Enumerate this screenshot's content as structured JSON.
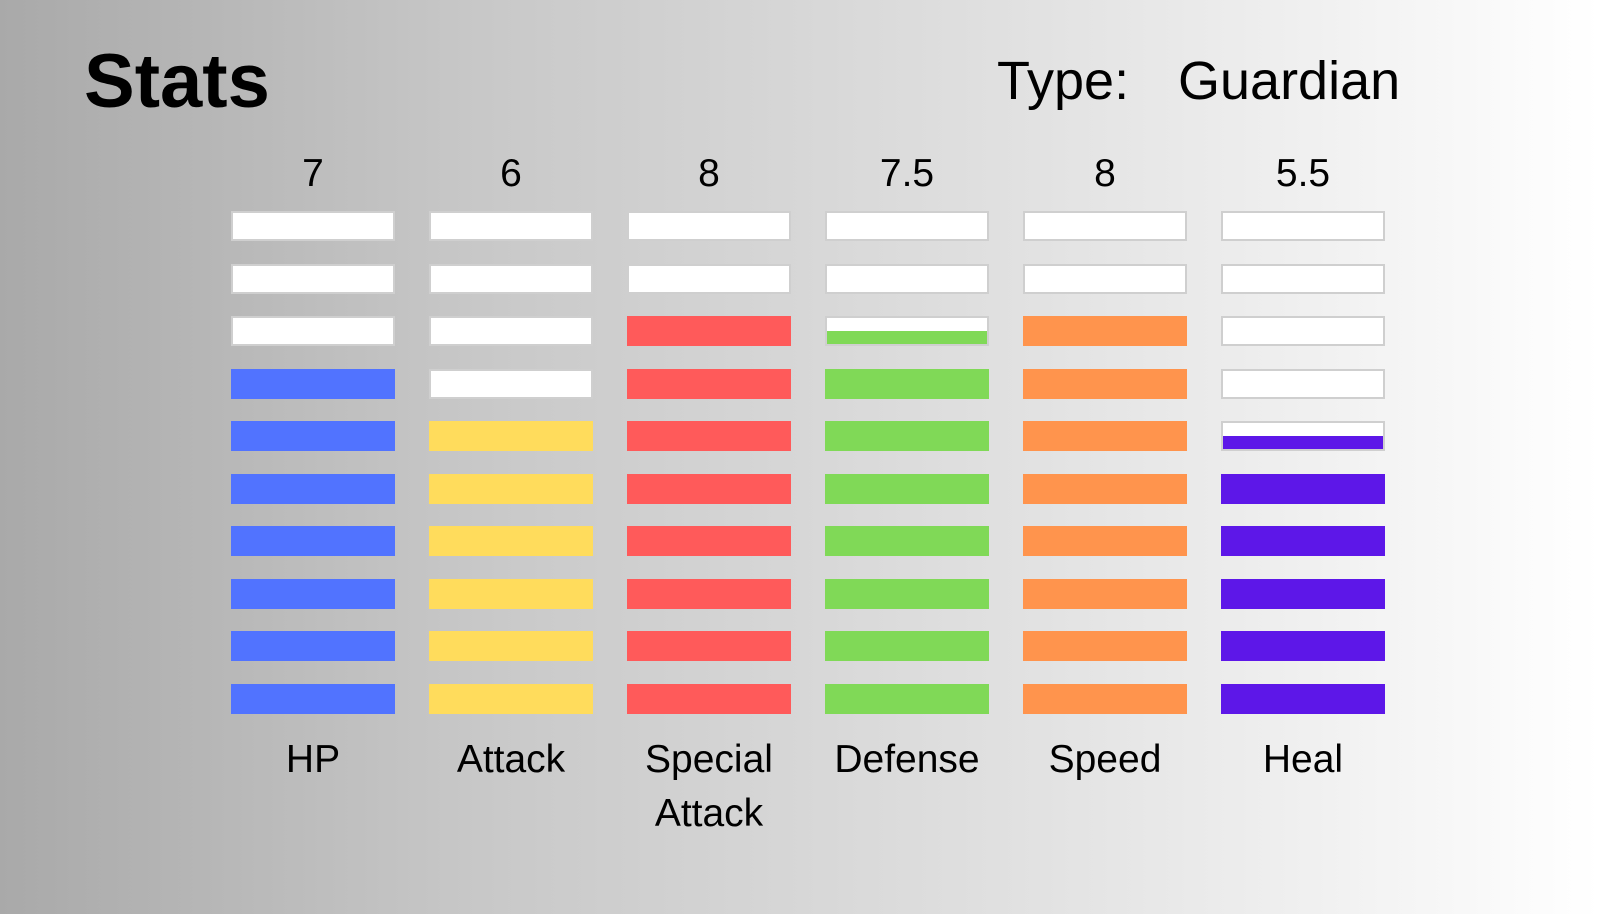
{
  "header": {
    "title": "Stats",
    "type_label": "Type:",
    "type_value": "Guardian"
  },
  "chart_data": {
    "type": "bar",
    "segments_per_bar": 10,
    "categories": [
      "HP",
      "Attack",
      "Special\nAttack",
      "Defense",
      "Speed",
      "Heal"
    ],
    "values": [
      7,
      6,
      8,
      7.5,
      8,
      5.5
    ],
    "value_labels": [
      "7",
      "6",
      "8",
      "7.5",
      "8",
      "5.5"
    ],
    "colors": [
      "#5173ff",
      "#ffdc5c",
      "#ff5a5a",
      "#80d957",
      "#ff944d",
      "#5d17e8"
    ],
    "ylim": [
      0,
      10
    ]
  }
}
